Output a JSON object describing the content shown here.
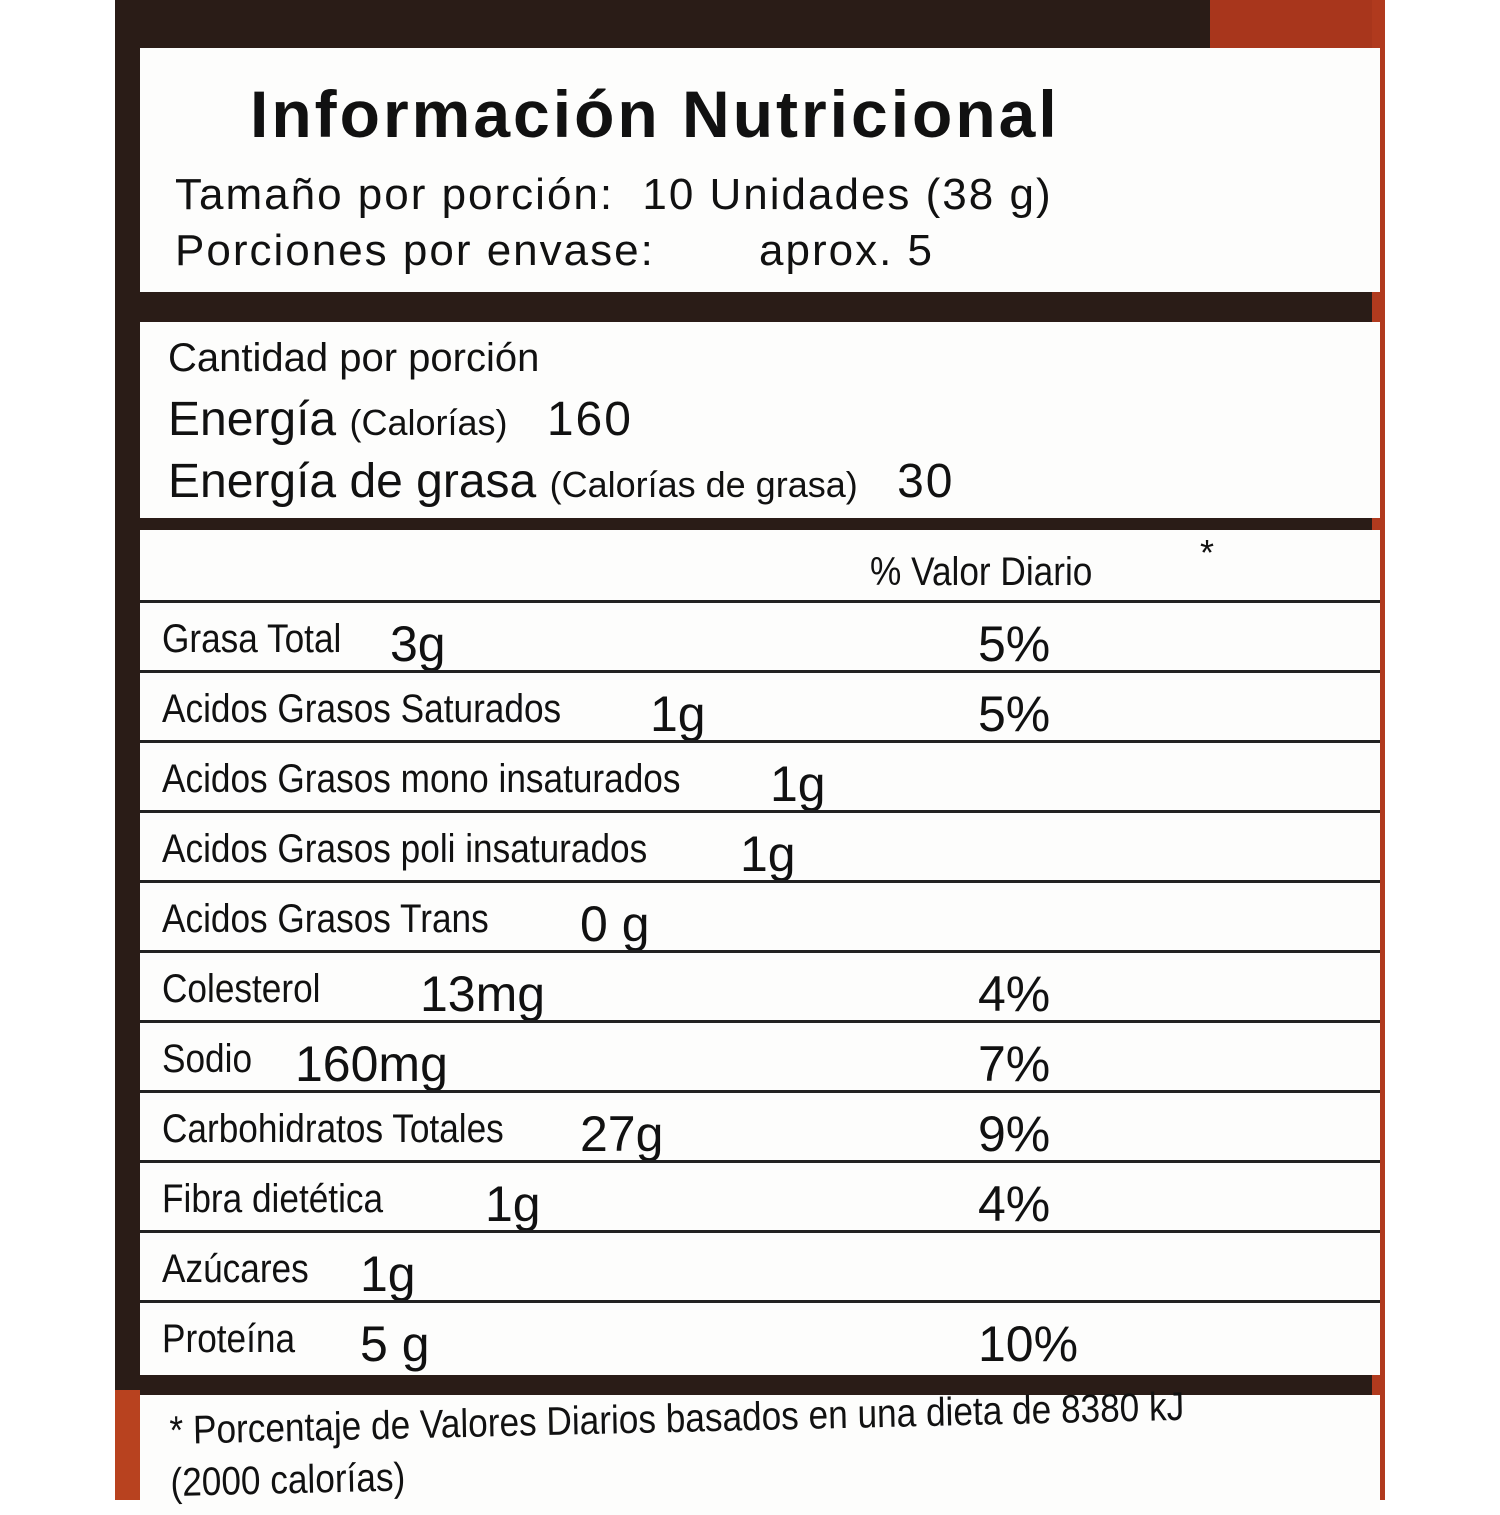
{
  "title": "Información Nutricional",
  "serving": {
    "size_label": "Tamaño por porción:",
    "size_value": "10 Unidades (38 g)",
    "per_container_label": "Porciones por envase:",
    "per_container_value": "aprox. 5"
  },
  "energy": {
    "amount_header": "Cantidad por porción",
    "energy_label": "Energía",
    "energy_sub": "(Calorías)",
    "energy_value": "160",
    "fat_energy_label": "Energía de grasa",
    "fat_energy_sub": "(Calorías de  grasa)",
    "fat_energy_value": "30"
  },
  "table": {
    "dv_header": "% Valor Diario",
    "dv_marker": "*",
    "rows": [
      {
        "label": "Grasa Total",
        "amount": "3g",
        "dv": "5%"
      },
      {
        "label": "Acidos  Grasos Saturados",
        "amount": "1g",
        "dv": "5%"
      },
      {
        "label": "Acidos Grasos mono insaturados",
        "amount": "1g",
        "dv": ""
      },
      {
        "label": "Acidos Grasos poli insaturados",
        "amount": "1g",
        "dv": ""
      },
      {
        "label": "Acidos Grasos Trans",
        "amount": "0 g",
        "dv": ""
      },
      {
        "label": "Colesterol",
        "amount": "13mg",
        "dv": "4%"
      },
      {
        "label": "Sodio",
        "amount": "160mg",
        "dv": "7%"
      },
      {
        "label": "Carbohidratos Totales",
        "amount": "27g",
        "dv": "9%"
      },
      {
        "label": "Fibra dietética",
        "amount": "1g",
        "dv": "4%"
      },
      {
        "label": "Azúcares",
        "amount": "1g",
        "dv": ""
      },
      {
        "label": "Proteína",
        "amount": "5 g",
        "dv": "10%"
      }
    ]
  },
  "footnote": {
    "line1": "* Porcentaje de Valores Diarios basados en una dieta de 8380 kJ",
    "line2": "(2000 calorías)"
  },
  "colors": {
    "packaging_dark": "#2a1c17",
    "packaging_red": "#b03a1e",
    "label_bg": "#fdfdfc"
  }
}
